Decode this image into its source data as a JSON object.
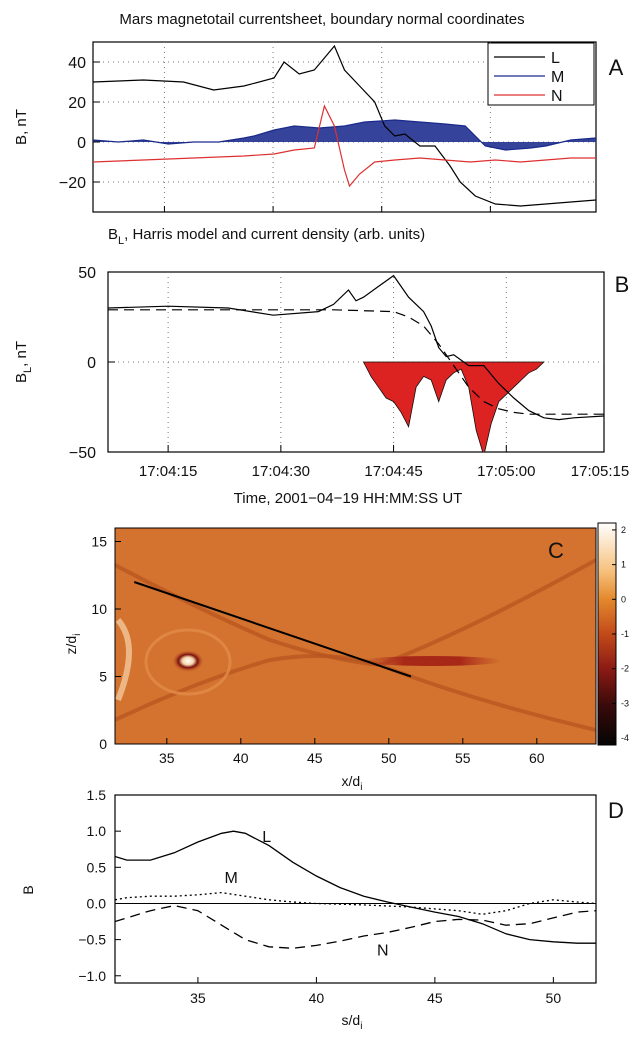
{
  "figure_title": "Mars magnetotail currentsheet, boundary normal coordinates",
  "chart_data": [
    {
      "id": "A",
      "type": "line",
      "panel_letter": "A",
      "ylabel": "B, nT",
      "xlim": [
        0,
        1
      ],
      "ylim": [
        -35,
        50
      ],
      "yticks": [
        -20,
        0,
        20,
        40
      ],
      "ytick_labels": [
        "−20",
        "0",
        "20",
        "40"
      ],
      "xtick_fracs": [
        0.142,
        0.358,
        0.574,
        0.79
      ],
      "legend_position": "top-right",
      "series": [
        {
          "name": "L",
          "color": "#000000",
          "x": [
            0,
            0.1,
            0.18,
            0.24,
            0.3,
            0.36,
            0.38,
            0.41,
            0.44,
            0.46,
            0.48,
            0.5,
            0.53,
            0.56,
            0.58,
            0.6,
            0.62,
            0.65,
            0.68,
            0.71,
            0.73,
            0.76,
            0.8,
            0.85,
            0.9,
            0.95,
            1
          ],
          "y": [
            30,
            31,
            30,
            26,
            28,
            32,
            40,
            34,
            36,
            42,
            48,
            36,
            28,
            20,
            8,
            3,
            4,
            -2,
            -2,
            -12,
            -20,
            -27,
            -31,
            -32,
            -31,
            -30,
            -29
          ]
        },
        {
          "name": "M",
          "color": "#1a2a8a",
          "x": [
            0,
            0.05,
            0.1,
            0.15,
            0.2,
            0.25,
            0.3,
            0.32,
            0.36,
            0.4,
            0.45,
            0.5,
            0.54,
            0.6,
            0.65,
            0.7,
            0.74,
            0.78,
            0.82,
            0.87,
            0.9,
            0.95,
            1
          ],
          "y": [
            1,
            0,
            1,
            -1,
            0,
            0,
            2,
            3,
            6,
            8,
            7,
            8,
            10,
            11,
            10,
            9,
            8,
            -2,
            -4,
            -3,
            -2,
            1,
            2
          ]
        },
        {
          "name": "N",
          "color": "#dd3030",
          "x": [
            0,
            0.1,
            0.2,
            0.3,
            0.36,
            0.4,
            0.44,
            0.46,
            0.48,
            0.5,
            0.51,
            0.53,
            0.56,
            0.6,
            0.65,
            0.7,
            0.75,
            0.8,
            0.85,
            0.9,
            0.95,
            1
          ],
          "y": [
            -10,
            -9,
            -8,
            -7,
            -6,
            -4,
            -3,
            18,
            8,
            -14,
            -22,
            -16,
            -10,
            -9,
            -8,
            -9,
            -10,
            -9,
            -10,
            -9,
            -8,
            -8
          ]
        }
      ]
    },
    {
      "id": "B",
      "type": "line",
      "panel_letter": "B",
      "title": "Bₗ, Harris model and current density (arb. units)",
      "title_main": "B",
      "title_sub": "L",
      "title_rest": ", Harris model and current density (arb. units)",
      "ylabel_main": "B",
      "ylabel_sub": "L",
      "ylabel_rest": ", nT",
      "xlabel": "Time, 2001−04−19 HH:MM:SS UT",
      "xlim": [
        0,
        66
      ],
      "ylim": [
        -50,
        50
      ],
      "yticks": [
        -50,
        0,
        50
      ],
      "ytick_labels": [
        "−50",
        "0",
        "50"
      ],
      "xticks": [
        8,
        23,
        38,
        53,
        68
      ],
      "xtick_labels": [
        "17:04:15",
        "17:04:30",
        "17:04:45",
        "17:05:00",
        "17:05:15"
      ],
      "series": [
        {
          "name": "B_L measured",
          "color": "#000000",
          "style": "solid",
          "x": [
            0,
            8,
            16,
            22,
            28,
            30,
            32,
            33,
            34,
            36,
            38,
            40,
            42,
            43,
            44,
            45,
            46,
            48,
            50,
            52,
            54,
            56,
            58,
            60,
            62,
            66
          ],
          "y": [
            30,
            31,
            30,
            26,
            28,
            32,
            40,
            34,
            36,
            42,
            48,
            36,
            28,
            20,
            8,
            3,
            4,
            -2,
            -2,
            -12,
            -20,
            -27,
            -31,
            -32,
            -31,
            -30
          ]
        },
        {
          "name": "Harris model",
          "color": "#000000",
          "style": "dashed",
          "x": [
            0,
            10,
            20,
            30,
            38,
            40,
            42,
            44,
            46,
            48,
            50,
            52,
            54,
            56,
            58,
            62,
            66
          ],
          "y": [
            29,
            29,
            29,
            29,
            28,
            25,
            20,
            10,
            -2,
            -14,
            -22,
            -26,
            -28,
            -29,
            -29,
            -29,
            -29
          ]
        },
        {
          "name": "current density",
          "color": "#dd2222",
          "style": "fill",
          "x": [
            34,
            35,
            36,
            37,
            38,
            39,
            40,
            41,
            42,
            43,
            44,
            45,
            46,
            47,
            48,
            49,
            50,
            51,
            52,
            53,
            54,
            55,
            56,
            57,
            58
          ],
          "y": [
            0,
            -8,
            -14,
            -20,
            -22,
            -28,
            -36,
            -14,
            -8,
            -10,
            -22,
            -10,
            -6,
            -4,
            -14,
            -38,
            -52,
            -34,
            -22,
            -18,
            -14,
            -10,
            -6,
            -4,
            0
          ]
        }
      ]
    },
    {
      "id": "C",
      "type": "heatmap",
      "panel_letter": "C",
      "xlabel_main": "x/d",
      "xlabel_sub": "i",
      "ylabel_main": "z/d",
      "ylabel_sub": "i",
      "xlim": [
        31.5,
        64
      ],
      "ylim": [
        0,
        16
      ],
      "xticks": [
        35,
        40,
        45,
        50,
        55,
        60
      ],
      "yticks": [
        0,
        5,
        10,
        15
      ],
      "colorbar_range": [
        -4.2,
        2.2
      ],
      "colorbar_ticks": [
        2,
        1,
        0,
        -1,
        -2,
        -3,
        -4
      ],
      "line_start": [
        32.8,
        12.0
      ],
      "line_end": [
        51.5,
        5.0
      ],
      "blob_center": [
        36.8,
        7.9
      ],
      "xpoint_center": [
        53.5,
        7.9
      ]
    },
    {
      "id": "D",
      "type": "line",
      "panel_letter": "D",
      "xlabel_main": "s/d",
      "xlabel_sub": "i",
      "ylabel": "B",
      "xlim": [
        31.5,
        51.8
      ],
      "ylim": [
        -1.1,
        1.5
      ],
      "yticks": [
        -1.0,
        -0.5,
        0.0,
        0.5,
        1.0,
        1.5
      ],
      "ytick_labels": [
        "−1.0",
        "−0.5",
        "0.0",
        "0.5",
        "1.0",
        "1.5"
      ],
      "xticks": [
        35,
        40,
        45,
        50
      ],
      "series": [
        {
          "name": "L",
          "color": "#000000",
          "style": "solid",
          "label_at": [
            37.9,
            0.85
          ],
          "x": [
            31.5,
            32,
            33,
            34,
            35,
            36,
            36.5,
            37,
            38,
            39,
            40,
            41,
            42,
            43,
            44,
            45,
            46,
            47,
            48,
            49,
            50,
            51,
            51.8
          ],
          "y": [
            0.65,
            0.6,
            0.6,
            0.7,
            0.85,
            0.97,
            1.0,
            0.97,
            0.8,
            0.57,
            0.38,
            0.22,
            0.1,
            0.02,
            -0.05,
            -0.12,
            -0.18,
            -0.28,
            -0.42,
            -0.5,
            -0.53,
            -0.55,
            -0.55
          ]
        },
        {
          "name": "M",
          "color": "#000000",
          "style": "dotted",
          "label_at": [
            36.4,
            0.28
          ],
          "x": [
            31.5,
            32,
            33,
            34,
            35,
            36,
            37,
            38,
            39,
            40,
            42,
            44,
            46,
            47,
            48,
            49,
            50,
            51,
            51.8
          ],
          "y": [
            0.05,
            0.08,
            0.1,
            0.1,
            0.12,
            0.15,
            0.1,
            0.05,
            0.02,
            0.0,
            -0.02,
            -0.05,
            -0.1,
            -0.15,
            -0.1,
            0.0,
            0.05,
            0.02,
            0.0
          ]
        },
        {
          "name": "N",
          "color": "#000000",
          "style": "dashed",
          "label_at": [
            42.8,
            -0.72
          ],
          "x": [
            31.5,
            32,
            33,
            34,
            35,
            36,
            37,
            38,
            39,
            40,
            41,
            42,
            43,
            44,
            45,
            46,
            47,
            48,
            49,
            50,
            51,
            51.8
          ],
          "y": [
            -0.25,
            -0.2,
            -0.1,
            -0.03,
            -0.1,
            -0.3,
            -0.5,
            -0.6,
            -0.62,
            -0.58,
            -0.52,
            -0.45,
            -0.4,
            -0.33,
            -0.25,
            -0.22,
            -0.23,
            -0.3,
            -0.28,
            -0.2,
            -0.12,
            -0.1
          ]
        }
      ]
    }
  ]
}
